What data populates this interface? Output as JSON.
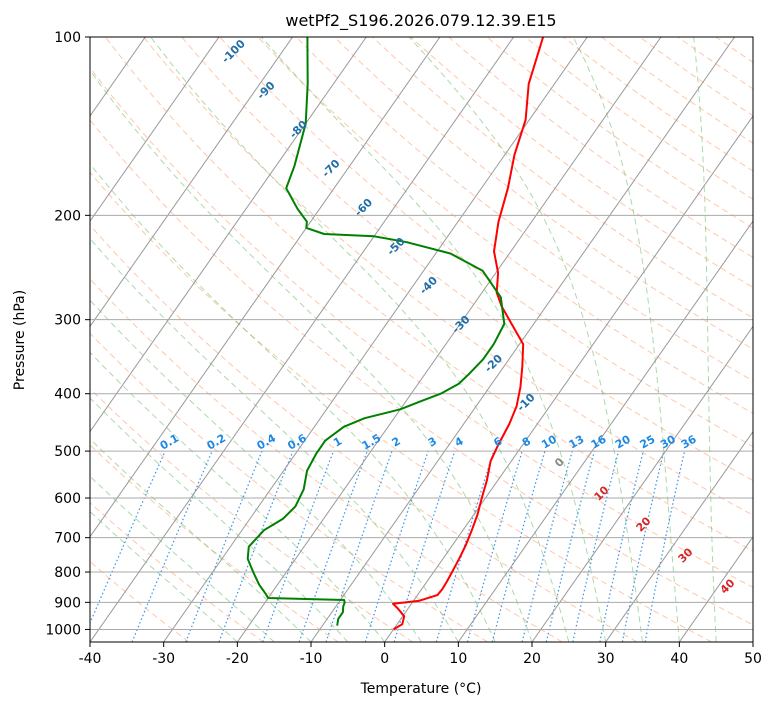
{
  "chart_data": {
    "type": "line",
    "title": "wetPf2_S196.2026.079.12.39.E15",
    "xlabel": "Temperature (°C)",
    "ylabel": "Pressure (hPa)",
    "xlim": [
      -40,
      50
    ],
    "ylim": [
      1050,
      100
    ],
    "y_scale": "log",
    "grid": true,
    "x_ticks": [
      "-40",
      "-30",
      "-20",
      "-10",
      "0",
      "10",
      "20",
      "30",
      "40",
      "50"
    ],
    "y_ticks": [
      "100",
      "200",
      "300",
      "400",
      "500",
      "600",
      "700",
      "800",
      "900",
      "1000"
    ],
    "skew": 35,
    "colors": {
      "temperature": "#ff0000",
      "dewpoint": "#008000",
      "dry_adiabat": "#ff9966",
      "moist_adiabat": "#66bb66",
      "mixing_ratio": "#1e88e5",
      "isotherm": "#999999",
      "isobar": "#aaaaaa",
      "dry_label": "#1f6fa8",
      "mixing_label": "#1e88e5",
      "theta_e_label": "#d62728"
    },
    "series": [
      {
        "key": "temperature",
        "x": [
          -0.0,
          0.7,
          0.2,
          -1.5,
          -2.5,
          0.7,
          2.7,
          2.8,
          2.7,
          2.5,
          2.2,
          1.8,
          1.2,
          0.5,
          -0.5,
          -1.5,
          -2.8,
          -3.3,
          -3.8,
          -4.5,
          -5.8,
          -7.5,
          -9.5,
          -13.0,
          -16.0,
          -18.0,
          -19.7,
          -22.3,
          -24.5,
          -26.4,
          -28.7,
          -30.5,
          -33.5,
          -36.0
        ],
        "y": [
          1000,
          980,
          950,
          920,
          905,
          895,
          875,
          855,
          830,
          800,
          760,
          720,
          680,
          640,
          600,
          560,
          520,
          490,
          450,
          420,
          390,
          360,
          330,
          305,
          285,
          270,
          250,
          230,
          205,
          180,
          158,
          138,
          120,
          100
        ]
      },
      {
        "key": "dewpoint",
        "x": [
          -8.0,
          -8.5,
          -8.5,
          -9.0,
          -9.2,
          -9.5,
          -20.0,
          -20.5,
          -22.5,
          -24.5,
          -26.5,
          -27.5,
          -27.0,
          -25.5,
          -25.0,
          -25.5,
          -26.8,
          -27.2,
          -27.2,
          -26.0,
          -24.0,
          -20.0,
          -18.0,
          -16.0,
          -14.5,
          -14.0,
          -13.5,
          -13.5,
          -14.0,
          -17.0,
          -22.0,
          -28.0,
          -35.0,
          -40.0,
          -47.0,
          -50.0,
          -50.5,
          -53.0,
          -56.5,
          -57.5,
          -60.0,
          -63.5,
          -68.0
        ],
        "y": [
          985,
          960,
          935,
          915,
          900,
          892,
          885,
          875,
          840,
          800,
          760,
          725,
          680,
          650,
          620,
          580,
          540,
          505,
          480,
          455,
          440,
          425,
          412,
          400,
          385,
          370,
          350,
          330,
          305,
          275,
          248,
          232,
          222,
          217,
          215,
          210,
          205,
          195,
          180,
          165,
          140,
          120,
          100
        ]
      }
    ],
    "dry_adiabat_labels": [
      "-100",
      "-90",
      "-80",
      "-70",
      "-60",
      "-50",
      "-40",
      "-30",
      "-20",
      "-10"
    ],
    "mixing_ratio_labels": [
      "0.1",
      "0.2",
      "0.4",
      "0.6",
      "1",
      "1.5",
      "2",
      "3",
      "4",
      "6",
      "8",
      "10",
      "13",
      "16",
      "20",
      "25",
      "30",
      "36"
    ],
    "theta_e_labels": [
      "0",
      "10",
      "20",
      "30",
      "40"
    ]
  }
}
